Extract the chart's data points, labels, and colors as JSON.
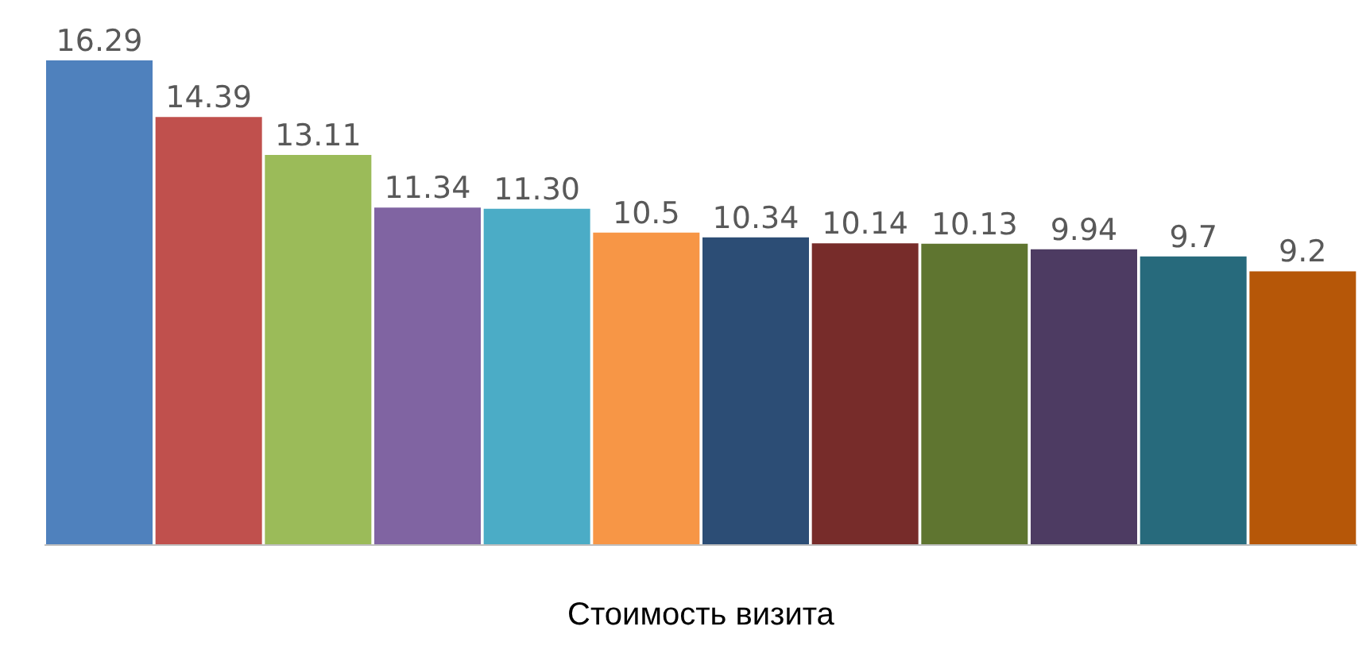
{
  "chart_data": {
    "type": "bar",
    "xlabel": "Стоимость визита",
    "categories": [
      null,
      null,
      null,
      null,
      null,
      null,
      null,
      null,
      null,
      null,
      null,
      null
    ],
    "values": [
      16.29,
      14.39,
      13.11,
      11.34,
      11.3,
      10.5,
      10.34,
      10.14,
      10.13,
      9.94,
      9.7,
      9.2
    ],
    "value_labels": [
      "16.29",
      "14.39",
      "13.11",
      "11.34",
      "11.30",
      "10.5",
      "10.34",
      "10.14",
      "10.13",
      "9.94",
      "9.7",
      "9.2"
    ],
    "colors": [
      "#4f81bd",
      "#c0504d",
      "#9bbb59",
      "#8064a2",
      "#4bacc6",
      "#f79646",
      "#2c4d75",
      "#772c2a",
      "#5f7530",
      "#4d3b62",
      "#276a7c",
      "#b65708"
    ]
  }
}
